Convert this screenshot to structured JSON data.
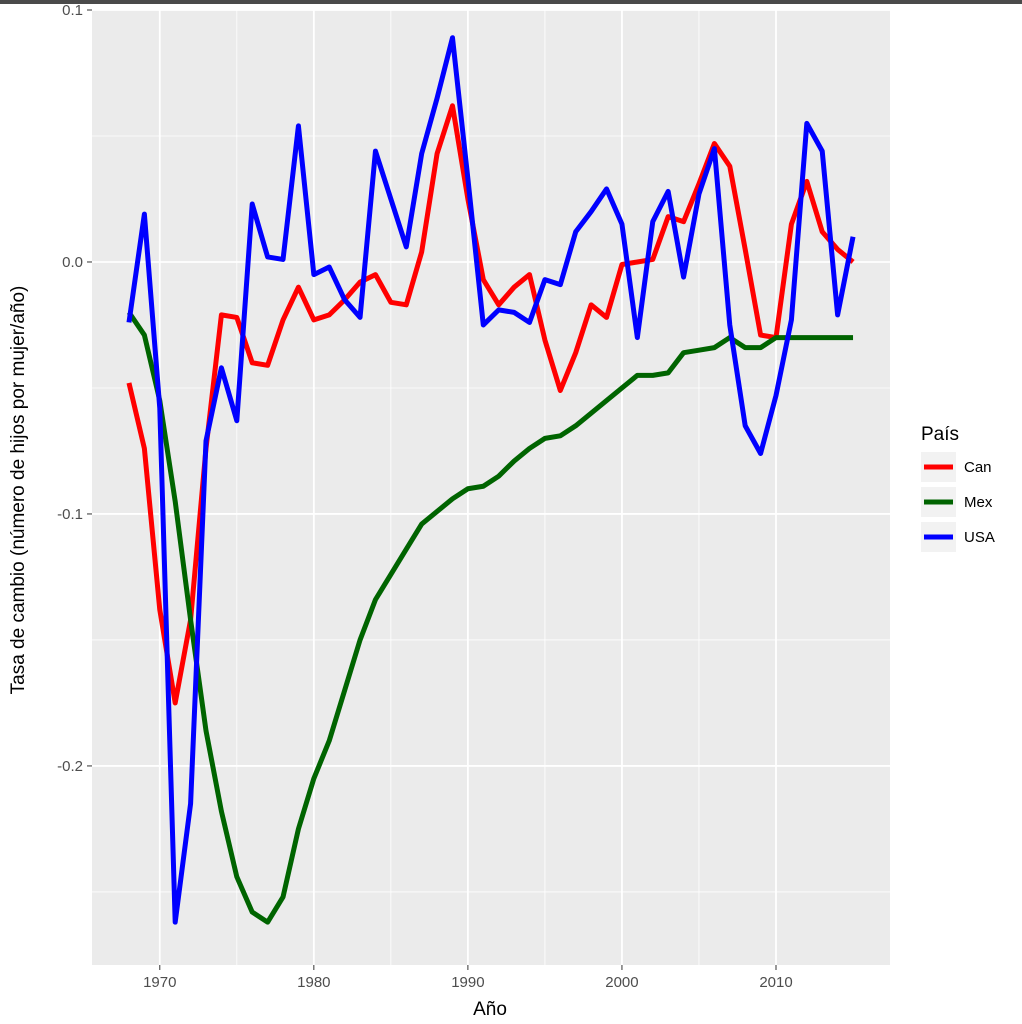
{
  "chart_data": {
    "type": "line",
    "title": "",
    "xlabel": "Año",
    "ylabel": "Tasa de cambio (número de hijos por mujer/año)",
    "xlim": [
      1965.6,
      2017.4
    ],
    "ylim": [
      -0.279,
      0.1
    ],
    "x_ticks": [
      1970,
      1980,
      1990,
      2000,
      2010
    ],
    "x_tick_labels": [
      "1970",
      "1980",
      "1990",
      "2000",
      "2010"
    ],
    "y_ticks": [
      -0.2,
      -0.1,
      0.0,
      0.1
    ],
    "y_tick_labels": [
      "-0.2",
      "-0.1",
      "0.0",
      "0.1"
    ],
    "grid": true,
    "legend": {
      "title": "País",
      "position": "right"
    },
    "x": [
      1968,
      1969,
      1970,
      1971,
      1972,
      1973,
      1974,
      1975,
      1976,
      1977,
      1978,
      1979,
      1980,
      1981,
      1982,
      1983,
      1984,
      1985,
      1986,
      1987,
      1988,
      1989,
      1990,
      1991,
      1992,
      1993,
      1994,
      1995,
      1996,
      1997,
      1998,
      1999,
      2000,
      2001,
      2002,
      2003,
      2004,
      2005,
      2006,
      2007,
      2008,
      2009,
      2010,
      2011,
      2012,
      2013,
      2014,
      2015
    ],
    "series": [
      {
        "name": "Can",
        "color": "#ff0000",
        "values": [
          -0.048,
          -0.074,
          -0.138,
          -0.175,
          -0.142,
          -0.074,
          -0.021,
          -0.022,
          -0.04,
          -0.041,
          -0.023,
          -0.01,
          -0.023,
          -0.021,
          -0.015,
          -0.008,
          -0.005,
          -0.016,
          -0.017,
          0.004,
          0.043,
          0.062,
          0.025,
          -0.007,
          -0.017,
          -0.01,
          -0.005,
          -0.031,
          -0.051,
          -0.036,
          -0.017,
          -0.022,
          -0.001,
          0.0,
          0.001,
          0.018,
          0.016,
          0.031,
          0.047,
          0.038,
          0.005,
          -0.029,
          -0.03,
          0.015,
          0.032,
          0.012,
          0.005,
          0.0
        ]
      },
      {
        "name": "Mex",
        "color": "#006400",
        "values": [
          -0.02,
          -0.029,
          -0.055,
          -0.095,
          -0.142,
          -0.186,
          -0.218,
          -0.244,
          -0.258,
          -0.262,
          -0.252,
          -0.225,
          -0.205,
          -0.19,
          -0.17,
          -0.15,
          -0.134,
          -0.124,
          -0.114,
          -0.104,
          -0.099,
          -0.094,
          -0.09,
          -0.089,
          -0.085,
          -0.079,
          -0.074,
          -0.07,
          -0.069,
          -0.065,
          -0.06,
          -0.055,
          -0.05,
          -0.045,
          -0.045,
          -0.044,
          -0.036,
          -0.035,
          -0.034,
          -0.03,
          -0.034,
          -0.034,
          -0.03,
          -0.03,
          -0.03,
          -0.03,
          -0.03,
          -0.03
        ]
      },
      {
        "name": "USA",
        "color": "#0000ff",
        "values": [
          -0.024,
          0.019,
          -0.058,
          -0.262,
          -0.215,
          -0.071,
          -0.042,
          -0.063,
          0.023,
          0.002,
          0.001,
          0.054,
          -0.005,
          -0.002,
          -0.015,
          -0.022,
          0.044,
          0.025,
          0.006,
          0.043,
          0.065,
          0.089,
          0.033,
          -0.025,
          -0.019,
          -0.02,
          -0.024,
          -0.007,
          -0.009,
          0.012,
          0.02,
          0.029,
          0.015,
          -0.03,
          0.016,
          0.028,
          -0.006,
          0.027,
          0.045,
          -0.025,
          -0.065,
          -0.076,
          -0.053,
          -0.023,
          0.055,
          0.044,
          -0.021,
          0.01
        ]
      }
    ]
  }
}
